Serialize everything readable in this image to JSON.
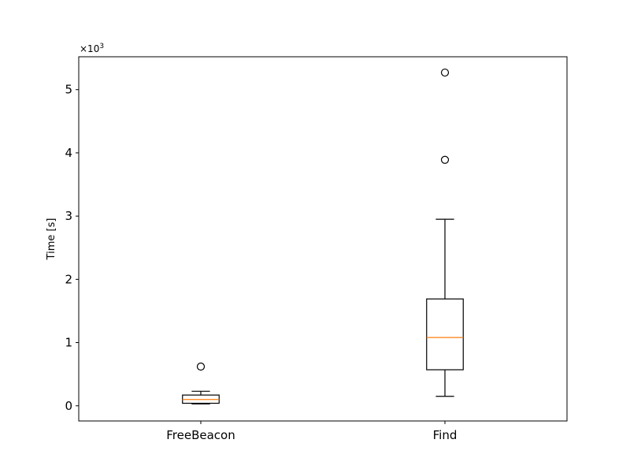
{
  "chart_data": {
    "type": "boxplot",
    "ylabel": "Time [s]",
    "y_multiplier_label": "×10",
    "y_multiplier_exponent": "3",
    "ylim": [
      -0.24,
      5.52
    ],
    "yticks": [
      0,
      1,
      2,
      3,
      4,
      5
    ],
    "ytick_labels": [
      "0",
      "1",
      "2",
      "3",
      "4",
      "5"
    ],
    "categories": [
      "FreeBeacon",
      "Find"
    ],
    "boxes": [
      {
        "label": "FreeBeacon",
        "whislo": 0.03,
        "q1": 0.04,
        "med": 0.1,
        "q3": 0.17,
        "whishi": 0.23,
        "fliers": [
          0.62
        ]
      },
      {
        "label": "Find",
        "whislo": 0.15,
        "q1": 0.57,
        "med": 1.08,
        "q3": 1.69,
        "whishi": 2.95,
        "fliers": [
          3.89,
          5.27
        ]
      }
    ],
    "colors": {
      "box": "#000000",
      "median": "#ff7f0e",
      "flier": "#000000"
    },
    "grid": false,
    "legend": "none"
  }
}
